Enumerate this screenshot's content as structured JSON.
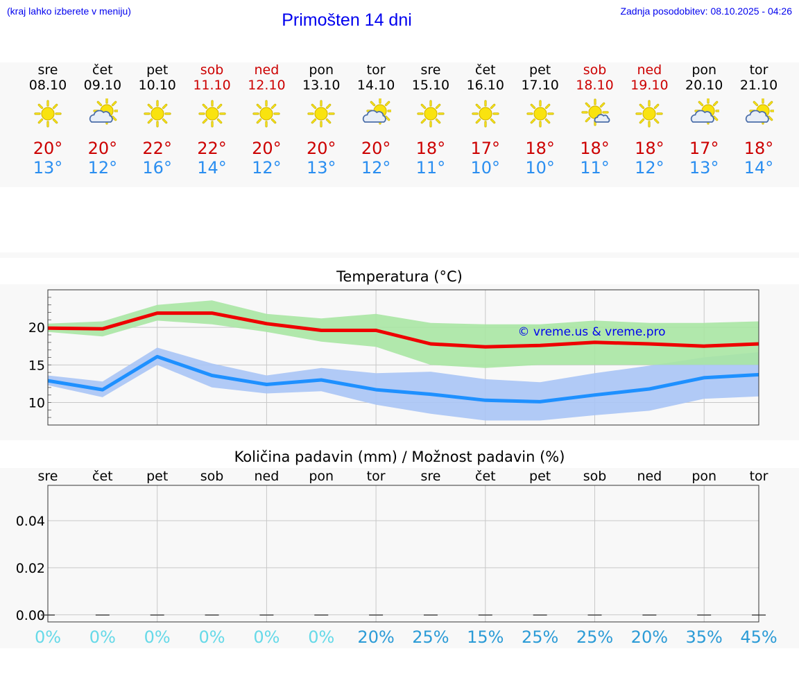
{
  "header": {
    "hint": "(kraj lahko izberete v meniju)",
    "title": "Primošten 14 dni",
    "updated_label": "Zadnja posodobitev:",
    "updated_value": "08.10.2025 - 04:26"
  },
  "days": [
    {
      "name": "sre",
      "date": "08.10",
      "weekend": false,
      "icon": "sun-icon",
      "max": "20°",
      "min": "13°"
    },
    {
      "name": "čet",
      "date": "09.10",
      "weekend": false,
      "icon": "sun-cloud-icon",
      "max": "20°",
      "min": "12°"
    },
    {
      "name": "pet",
      "date": "10.10",
      "weekend": false,
      "icon": "sun-icon",
      "max": "22°",
      "min": "16°"
    },
    {
      "name": "sob",
      "date": "11.10",
      "weekend": true,
      "icon": "sun-icon",
      "max": "22°",
      "min": "14°"
    },
    {
      "name": "ned",
      "date": "12.10",
      "weekend": true,
      "icon": "sun-icon",
      "max": "20°",
      "min": "12°"
    },
    {
      "name": "pon",
      "date": "13.10",
      "weekend": false,
      "icon": "sun-icon",
      "max": "20°",
      "min": "13°"
    },
    {
      "name": "tor",
      "date": "14.10",
      "weekend": false,
      "icon": "sun-cloud-icon",
      "max": "20°",
      "min": "12°"
    },
    {
      "name": "sre",
      "date": "15.10",
      "weekend": false,
      "icon": "sun-icon",
      "max": "18°",
      "min": "11°"
    },
    {
      "name": "čet",
      "date": "16.10",
      "weekend": false,
      "icon": "sun-icon",
      "max": "17°",
      "min": "10°"
    },
    {
      "name": "pet",
      "date": "17.10",
      "weekend": false,
      "icon": "sun-icon",
      "max": "18°",
      "min": "10°"
    },
    {
      "name": "sob",
      "date": "18.10",
      "weekend": true,
      "icon": "sun-cloud-small-icon",
      "max": "18°",
      "min": "11°"
    },
    {
      "name": "ned",
      "date": "19.10",
      "weekend": true,
      "icon": "sun-icon",
      "max": "18°",
      "min": "12°"
    },
    {
      "name": "pon",
      "date": "20.10",
      "weekend": false,
      "icon": "sun-cloud-icon",
      "max": "17°",
      "min": "13°"
    },
    {
      "name": "tor",
      "date": "21.10",
      "weekend": false,
      "icon": "sun-cloud-icon",
      "max": "18°",
      "min": "14°"
    }
  ],
  "colors": {
    "max_line": "#ee0000",
    "max_band": "#a8e6a3",
    "min_line": "#1e90ff",
    "min_band": "#a9c4f5",
    "link": "#0000ee",
    "pct_low": "#66d9e8",
    "pct_high": "#2b9bd6"
  },
  "chart_data": [
    {
      "type": "line",
      "title": "Temperatura (°C)",
      "watermark": "© vreme.us & vreme.pro",
      "x": [
        "sre 08.10",
        "čet 09.10",
        "pet 10.10",
        "sob 11.10",
        "ned 12.10",
        "pon 13.10",
        "tor 14.10",
        "sre 15.10",
        "čet 16.10",
        "pet 17.10",
        "sob 18.10",
        "ned 19.10",
        "pon 20.10",
        "tor 21.10"
      ],
      "yticks": [
        10,
        15,
        20
      ],
      "ylim": [
        7,
        25
      ],
      "series": [
        {
          "name": "max",
          "values": [
            19.9,
            19.8,
            21.9,
            21.9,
            20.5,
            19.6,
            19.6,
            17.8,
            17.4,
            17.6,
            18.0,
            17.8,
            17.5,
            17.8
          ],
          "band_upper": [
            20.5,
            20.8,
            23.0,
            23.6,
            21.8,
            21.2,
            21.8,
            20.6,
            20.4,
            20.4,
            20.9,
            20.6,
            20.6,
            20.8
          ],
          "band_lower": [
            19.4,
            18.8,
            20.9,
            20.4,
            19.4,
            18.1,
            17.4,
            15.0,
            14.6,
            15.0,
            15.0,
            15.0,
            15.0,
            15.0
          ]
        },
        {
          "name": "min",
          "values": [
            12.9,
            11.7,
            16.1,
            13.6,
            12.4,
            13.0,
            11.7,
            11.1,
            10.3,
            10.1,
            11.0,
            11.8,
            13.3,
            13.7
          ],
          "band_upper": [
            13.6,
            12.8,
            17.3,
            15.2,
            13.6,
            14.6,
            13.9,
            14.1,
            13.1,
            12.7,
            13.9,
            14.9,
            16.0,
            16.7
          ],
          "band_lower": [
            12.3,
            10.7,
            15.0,
            12.0,
            11.2,
            11.5,
            9.7,
            8.5,
            7.6,
            7.6,
            8.3,
            8.9,
            10.5,
            10.8
          ]
        }
      ]
    },
    {
      "type": "bar",
      "title": "Količina padavin (mm) / Možnost padavin (%)",
      "categories": [
        "sre",
        "čet",
        "pet",
        "sob",
        "ned",
        "pon",
        "tor",
        "sre",
        "čet",
        "pet",
        "sob",
        "ned",
        "pon",
        "tor"
      ],
      "values": [
        0,
        0,
        0,
        0,
        0,
        0,
        0,
        0,
        0,
        0,
        0,
        0,
        0,
        0
      ],
      "yticks": [
        "0.00",
        "0.02",
        "0.04"
      ],
      "ylim": [
        -0.003,
        0.055
      ],
      "chance": [
        "0%",
        "0%",
        "0%",
        "0%",
        "0%",
        "0%",
        "20%",
        "25%",
        "15%",
        "25%",
        "25%",
        "20%",
        "35%",
        "45%"
      ]
    }
  ]
}
